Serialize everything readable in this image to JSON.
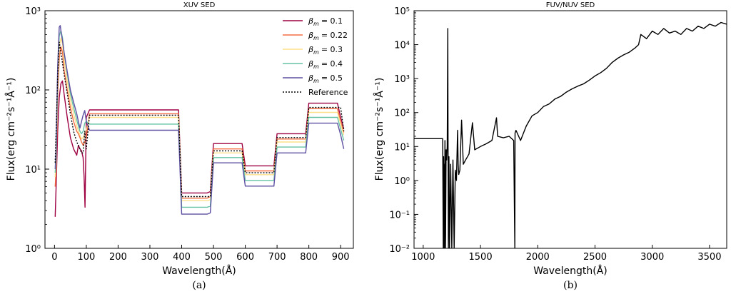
{
  "chart_data": [
    {
      "type": "line",
      "title": "XUV SED",
      "xlabel": "Wavelength(Å)",
      "ylabel": "Flux(erg cm⁻²s⁻¹Å⁻¹)",
      "xlim": [
        -30,
        940
      ],
      "ylim": [
        1,
        1000
      ],
      "yscale": "log",
      "xticks": [
        0,
        100,
        200,
        300,
        400,
        500,
        600,
        700,
        800,
        900
      ],
      "xtick_labels": [
        "0",
        "100",
        "200",
        "300",
        "400",
        "500",
        "600",
        "700",
        "800",
        "900"
      ],
      "yticks": [
        1,
        10,
        100,
        1000
      ],
      "ytick_labels": [
        "10⁰",
        "10¹",
        "10²",
        "10³"
      ],
      "legend_position": "top-right",
      "caption": "(a)",
      "series": [
        {
          "name": "β = 0.1",
          "label_main": "β",
          "label_sub": "m",
          "label_value": "= 0.1",
          "color": "#9e0142",
          "dash": "solid",
          "x": [
            2,
            5,
            10,
            15,
            20,
            25,
            30,
            40,
            50,
            60,
            70,
            75,
            80,
            85,
            90,
            93,
            96,
            100,
            110,
            200,
            300,
            390,
            400,
            480,
            490,
            500,
            590,
            600,
            690,
            700,
            790,
            800,
            850,
            890,
            900,
            910
          ],
          "y": [
            2.5,
            6,
            30,
            80,
            120,
            130,
            90,
            45,
            25,
            18,
            15,
            20,
            18,
            17,
            14,
            8,
            3.3,
            45,
            56,
            56,
            56,
            56,
            5,
            5,
            5.2,
            21,
            21,
            11,
            11,
            28,
            28,
            68,
            68,
            68,
            45,
            32
          ]
        },
        {
          "name": "β = 0.22",
          "label_main": "β",
          "label_sub": "m",
          "label_value": "= 0.22",
          "color": "#f46d43",
          "dash": "solid",
          "x": [
            2,
            5,
            10,
            15,
            20,
            25,
            30,
            40,
            50,
            60,
            70,
            75,
            80,
            85,
            90,
            95,
            100,
            110,
            200,
            300,
            390,
            400,
            480,
            490,
            500,
            590,
            600,
            690,
            700,
            790,
            800,
            850,
            890,
            900,
            910
          ],
          "y": [
            6,
            10,
            80,
            250,
            350,
            300,
            180,
            100,
            60,
            40,
            30,
            28,
            25,
            22,
            20,
            22,
            25,
            50,
            50,
            50,
            50,
            4.3,
            4.3,
            4.5,
            18,
            18,
            9.5,
            9.5,
            24,
            24,
            58,
            58,
            58,
            40,
            29
          ]
        },
        {
          "name": "β = 0.3",
          "label_main": "β",
          "label_sub": "m",
          "label_value": "= 0.3",
          "color": "#fee08b",
          "dash": "solid",
          "x": [
            2,
            5,
            10,
            15,
            20,
            25,
            30,
            40,
            50,
            60,
            70,
            75,
            80,
            85,
            90,
            95,
            100,
            110,
            200,
            300,
            390,
            400,
            480,
            490,
            500,
            590,
            600,
            690,
            700,
            790,
            800,
            850,
            890,
            900,
            910
          ],
          "y": [
            8,
            12,
            120,
            350,
            450,
            380,
            240,
            130,
            75,
            50,
            35,
            30,
            27,
            24,
            25,
            28,
            32,
            45,
            45,
            45,
            45,
            4.0,
            4.0,
            4.1,
            16,
            16,
            8.5,
            8.5,
            22,
            22,
            52,
            52,
            52,
            37,
            27
          ]
        },
        {
          "name": "β = 0.4",
          "label_main": "β",
          "label_sub": "m",
          "label_value": "= 0.4",
          "color": "#66c2a5",
          "dash": "solid",
          "x": [
            2,
            5,
            10,
            15,
            20,
            25,
            30,
            40,
            50,
            60,
            70,
            75,
            80,
            85,
            90,
            95,
            100,
            110,
            200,
            300,
            390,
            400,
            480,
            490,
            500,
            590,
            600,
            690,
            700,
            790,
            800,
            850,
            890,
            900,
            910
          ],
          "y": [
            9,
            14,
            160,
            480,
            560,
            460,
            300,
            160,
            90,
            60,
            42,
            35,
            30,
            28,
            30,
            38,
            40,
            37,
            37,
            37,
            37,
            3.3,
            3.3,
            3.4,
            14,
            14,
            7.2,
            7.2,
            19,
            19,
            45,
            45,
            45,
            32,
            23
          ]
        },
        {
          "name": "β = 0.5",
          "label_main": "β",
          "label_sub": "m",
          "label_value": "= 0.5",
          "color": "#5e4fa2",
          "dash": "solid",
          "x": [
            2,
            5,
            10,
            15,
            18,
            20,
            25,
            30,
            40,
            50,
            60,
            70,
            75,
            80,
            85,
            90,
            95,
            100,
            110,
            200,
            300,
            390,
            400,
            480,
            490,
            500,
            590,
            600,
            690,
            700,
            790,
            800,
            850,
            890,
            900,
            910
          ],
          "y": [
            10,
            18,
            200,
            620,
            650,
            560,
            420,
            300,
            170,
            100,
            70,
            50,
            40,
            33,
            40,
            48,
            55,
            40,
            31,
            31,
            31,
            31,
            2.7,
            2.7,
            2.8,
            12,
            12,
            6.1,
            6.1,
            16,
            16,
            38,
            38,
            38,
            27,
            18
          ]
        },
        {
          "name": "Reference",
          "label_main": "Reference",
          "label_sub": "",
          "label_value": "",
          "color": "#000000",
          "dash": "dotted",
          "x": [
            2,
            5,
            10,
            15,
            20,
            25,
            30,
            40,
            50,
            60,
            70,
            75,
            80,
            85,
            90,
            95,
            100,
            110,
            200,
            300,
            390,
            400,
            480,
            490,
            500,
            590,
            600,
            690,
            700,
            790,
            800,
            850,
            890,
            900,
            910
          ],
          "y": [
            12,
            30,
            150,
            400,
            300,
            220,
            160,
            90,
            50,
            30,
            22,
            20,
            18,
            16,
            16,
            30,
            18,
            48,
            48,
            48,
            48,
            4.5,
            4.5,
            4.5,
            17,
            17,
            9,
            9,
            25,
            25,
            60,
            60,
            60,
            60,
            30
          ]
        }
      ]
    },
    {
      "type": "line",
      "title": "FUV/NUV SED",
      "xlabel": "Wavelength(Å)",
      "ylabel": "Flux(erg cm⁻²s⁻¹Å⁻¹)",
      "xlim": [
        920,
        3650
      ],
      "ylim": [
        0.01,
        100000
      ],
      "yscale": "log",
      "xticks": [
        1000,
        1500,
        2000,
        2500,
        3000,
        3500
      ],
      "xtick_labels": [
        "1000",
        "1500",
        "2000",
        "2500",
        "3000",
        "3500"
      ],
      "yticks": [
        0.01,
        0.1,
        1,
        10,
        100,
        1000,
        10000,
        100000
      ],
      "ytick_labels": [
        "10⁻²",
        "10⁻¹",
        "10⁰",
        "10¹",
        "10²",
        "10³",
        "10⁴",
        "10⁵"
      ],
      "caption": "(b)",
      "series": [
        {
          "color": "#000000",
          "x": [
            920,
            1000,
            1100,
            1170,
            1175,
            1178,
            1180,
            1182,
            1185,
            1190,
            1195,
            1200,
            1205,
            1210,
            1215,
            1216,
            1220,
            1225,
            1230,
            1240,
            1250,
            1260,
            1270,
            1280,
            1290,
            1300,
            1305,
            1310,
            1320,
            1335,
            1350,
            1370,
            1400,
            1430,
            1450,
            1500,
            1550,
            1600,
            1640,
            1650,
            1700,
            1750,
            1790,
            1800,
            1802,
            1810,
            1850,
            1900,
            1950,
            2000,
            2050,
            2100,
            2150,
            2200,
            2250,
            2300,
            2350,
            2400,
            2450,
            2500,
            2550,
            2600,
            2650,
            2700,
            2750,
            2800,
            2850,
            2880,
            2900,
            2950,
            3000,
            3050,
            3100,
            3150,
            3200,
            3250,
            3300,
            3350,
            3400,
            3450,
            3500,
            3550,
            3600,
            3650
          ],
          "y": [
            17,
            17,
            17,
            17,
            0.01,
            5,
            0.01,
            3,
            0.01,
            15,
            0.01,
            8,
            4,
            10,
            30000,
            200,
            0.01,
            5,
            0.01,
            3,
            0.01,
            4,
            0.01,
            2,
            1,
            30,
            3,
            1.5,
            2,
            60,
            3,
            4,
            6,
            50,
            8,
            10,
            12,
            15,
            70,
            20,
            18,
            20,
            15,
            0.01,
            25,
            30,
            15,
            40,
            80,
            100,
            150,
            180,
            250,
            300,
            400,
            500,
            600,
            700,
            900,
            1200,
            1500,
            2000,
            3000,
            4000,
            5000,
            6000,
            8000,
            10000,
            20000,
            15000,
            25000,
            20000,
            30000,
            22000,
            25000,
            20000,
            30000,
            25000,
            35000,
            30000,
            40000,
            35000,
            45000,
            40000
          ]
        }
      ]
    }
  ]
}
